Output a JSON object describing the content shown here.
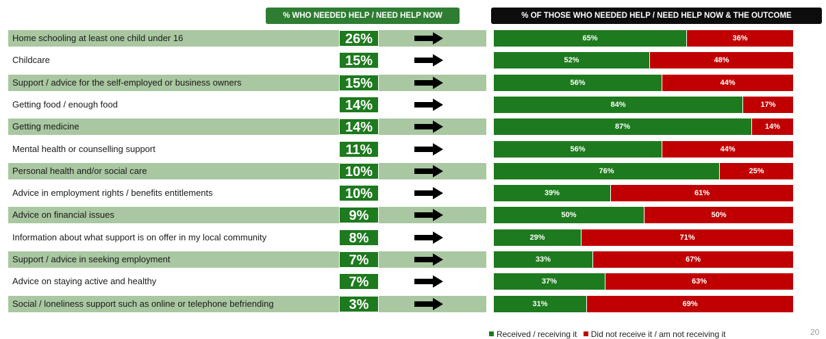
{
  "header_left": "% WHO NEEDED HELP / NEED HELP NOW",
  "header_right": "% OF THOSE WHO NEEDED HELP / NEED HELP NOW & THE OUTCOME",
  "colors": {
    "received": "#1e7a1e",
    "not_received": "#c00000",
    "row_shade": "#a9c7a1",
    "badge": "#1e7a1e"
  },
  "chart_data": [
    {
      "type": "table",
      "columns": [
        "",
        "% WHO NEEDED HELP / NEED HELP NOW"
      ],
      "categories": [
        "Home schooling at least one child under 16",
        "Childcare",
        "Support / advice for the self-employed or business owners",
        "Getting food / enough food",
        "Getting medicine",
        "Mental health or counselling support",
        "Personal health and/or social care",
        "Advice in employment rights / benefits entitlements",
        "Advice on financial issues",
        "Information about what support is on offer in my local community",
        "Support / advice in seeking employment",
        "Advice on staying active and healthy",
        "Social / loneliness support such as online or telephone befriending"
      ],
      "values": [
        "26%",
        "15%",
        "15%",
        "14%",
        "14%",
        "11%",
        "10%",
        "10%",
        "9%",
        "8%",
        "7%",
        "7%",
        "3%"
      ]
    },
    {
      "type": "bar",
      "orientation": "horizontal",
      "stacked": true,
      "percent_stacked": true,
      "title": "% OF THOSE WHO NEEDED HELP / NEED HELP NOW & THE OUTCOME",
      "categories": [
        "Home schooling at least one child under 16",
        "Childcare",
        "Support / advice for the self-employed or business owners",
        "Getting food / enough food",
        "Getting medicine",
        "Mental health or counselling support",
        "Personal health and/or social care",
        "Advice in employment rights / benefits entitlements",
        "Advice on financial issues",
        "Information about what support is on offer in my local community",
        "Support / advice in seeking employment",
        "Advice on staying active and healthy",
        "Social / loneliness support such as online or telephone befriending"
      ],
      "series": [
        {
          "name": "Received / receiving it",
          "color": "#1e7a1e",
          "values": [
            65,
            52,
            56,
            84,
            87,
            56,
            76,
            39,
            50,
            29,
            33,
            37,
            31
          ]
        },
        {
          "name": "Did not receive it / am not receiving it",
          "color": "#c00000",
          "values": [
            36,
            48,
            44,
            17,
            14,
            44,
            25,
            61,
            50,
            71,
            67,
            63,
            69
          ]
        }
      ],
      "legend": "bottom-right",
      "grid": false
    }
  ],
  "page_number": "20"
}
